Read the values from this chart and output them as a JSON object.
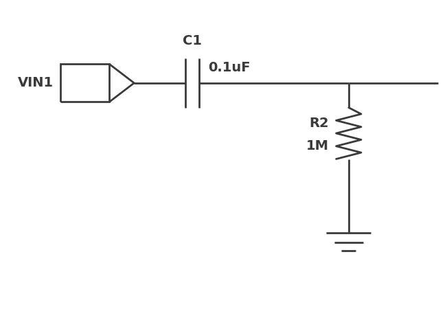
{
  "bg_color": "#ffffff",
  "line_color": "#3a3a3a",
  "line_width": 2.0,
  "font_size": 14,
  "font_color": "#3a3a3a",
  "connector_label": "VIN1",
  "cap_label": "C1",
  "cap_value": "0.1uF",
  "res_label": "R2",
  "res_value": "1M",
  "figsize": [
    6.51,
    4.63
  ],
  "dpi": 100,
  "xlim": [
    0,
    10
  ],
  "ylim": [
    0,
    7
  ]
}
